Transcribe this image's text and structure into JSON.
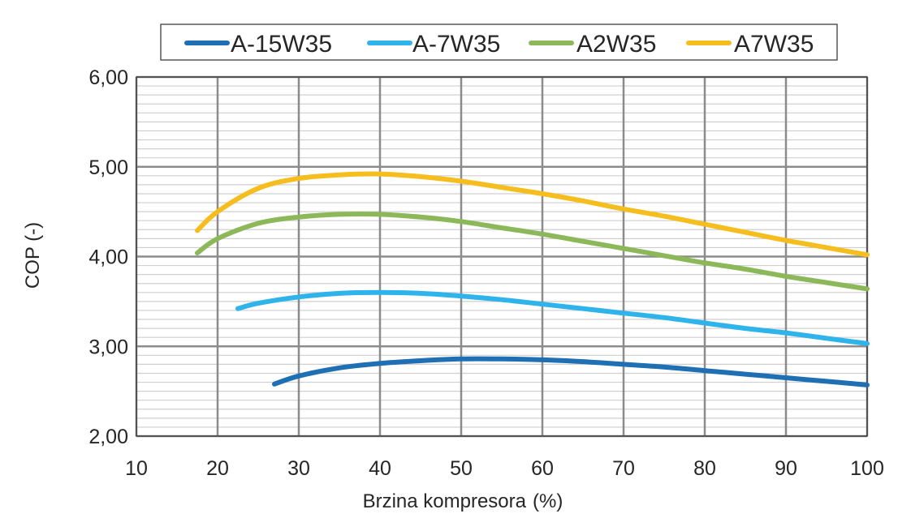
{
  "chart_data": {
    "type": "line",
    "title": "",
    "xlabel": "Brzina kompresora",
    "xlabel_unit": "(%)",
    "ylabel": "COP (-)",
    "xlim": [
      10,
      100
    ],
    "ylim": [
      2.0,
      6.0
    ],
    "x_ticks": [
      10,
      20,
      30,
      40,
      50,
      60,
      70,
      80,
      90,
      100
    ],
    "y_ticks": [
      "2,00",
      "3,00",
      "4,00",
      "5,00",
      "6,00"
    ],
    "y_tick_values": [
      2.0,
      3.0,
      4.0,
      5.0,
      6.0
    ],
    "grid": true,
    "legend_position": "top",
    "series": [
      {
        "name": "A-15W35",
        "color": "#1f6fb5",
        "points": [
          [
            27,
            2.58
          ],
          [
            30,
            2.67
          ],
          [
            35,
            2.76
          ],
          [
            40,
            2.81
          ],
          [
            45,
            2.84
          ],
          [
            50,
            2.86
          ],
          [
            55,
            2.86
          ],
          [
            60,
            2.85
          ],
          [
            65,
            2.83
          ],
          [
            70,
            2.8
          ],
          [
            75,
            2.77
          ],
          [
            80,
            2.73
          ],
          [
            85,
            2.69
          ],
          [
            90,
            2.65
          ],
          [
            95,
            2.61
          ],
          [
            100,
            2.57
          ]
        ]
      },
      {
        "name": "A-7W35",
        "color": "#2eb3ea",
        "points": [
          [
            22.5,
            3.42
          ],
          [
            25,
            3.48
          ],
          [
            30,
            3.55
          ],
          [
            35,
            3.59
          ],
          [
            40,
            3.6
          ],
          [
            45,
            3.59
          ],
          [
            50,
            3.56
          ],
          [
            55,
            3.52
          ],
          [
            60,
            3.47
          ],
          [
            65,
            3.42
          ],
          [
            70,
            3.37
          ],
          [
            75,
            3.32
          ],
          [
            80,
            3.26
          ],
          [
            85,
            3.2
          ],
          [
            90,
            3.15
          ],
          [
            95,
            3.09
          ],
          [
            100,
            3.03
          ]
        ]
      },
      {
        "name": "A2W35",
        "color": "#8db85a",
        "points": [
          [
            17.5,
            4.04
          ],
          [
            20,
            4.2
          ],
          [
            25,
            4.37
          ],
          [
            30,
            4.44
          ],
          [
            35,
            4.47
          ],
          [
            40,
            4.47
          ],
          [
            45,
            4.44
          ],
          [
            50,
            4.39
          ],
          [
            55,
            4.32
          ],
          [
            60,
            4.25
          ],
          [
            65,
            4.17
          ],
          [
            70,
            4.09
          ],
          [
            75,
            4.01
          ],
          [
            80,
            3.93
          ],
          [
            85,
            3.86
          ],
          [
            90,
            3.78
          ],
          [
            95,
            3.71
          ],
          [
            100,
            3.64
          ]
        ]
      },
      {
        "name": "A7W35",
        "color": "#f5be1e",
        "points": [
          [
            17.5,
            4.29
          ],
          [
            20,
            4.5
          ],
          [
            25,
            4.76
          ],
          [
            30,
            4.87
          ],
          [
            35,
            4.91
          ],
          [
            40,
            4.92
          ],
          [
            45,
            4.89
          ],
          [
            50,
            4.84
          ],
          [
            55,
            4.77
          ],
          [
            60,
            4.7
          ],
          [
            65,
            4.62
          ],
          [
            70,
            4.53
          ],
          [
            75,
            4.45
          ],
          [
            80,
            4.36
          ],
          [
            85,
            4.27
          ],
          [
            90,
            4.18
          ],
          [
            95,
            4.1
          ],
          [
            100,
            4.02
          ]
        ]
      }
    ]
  }
}
